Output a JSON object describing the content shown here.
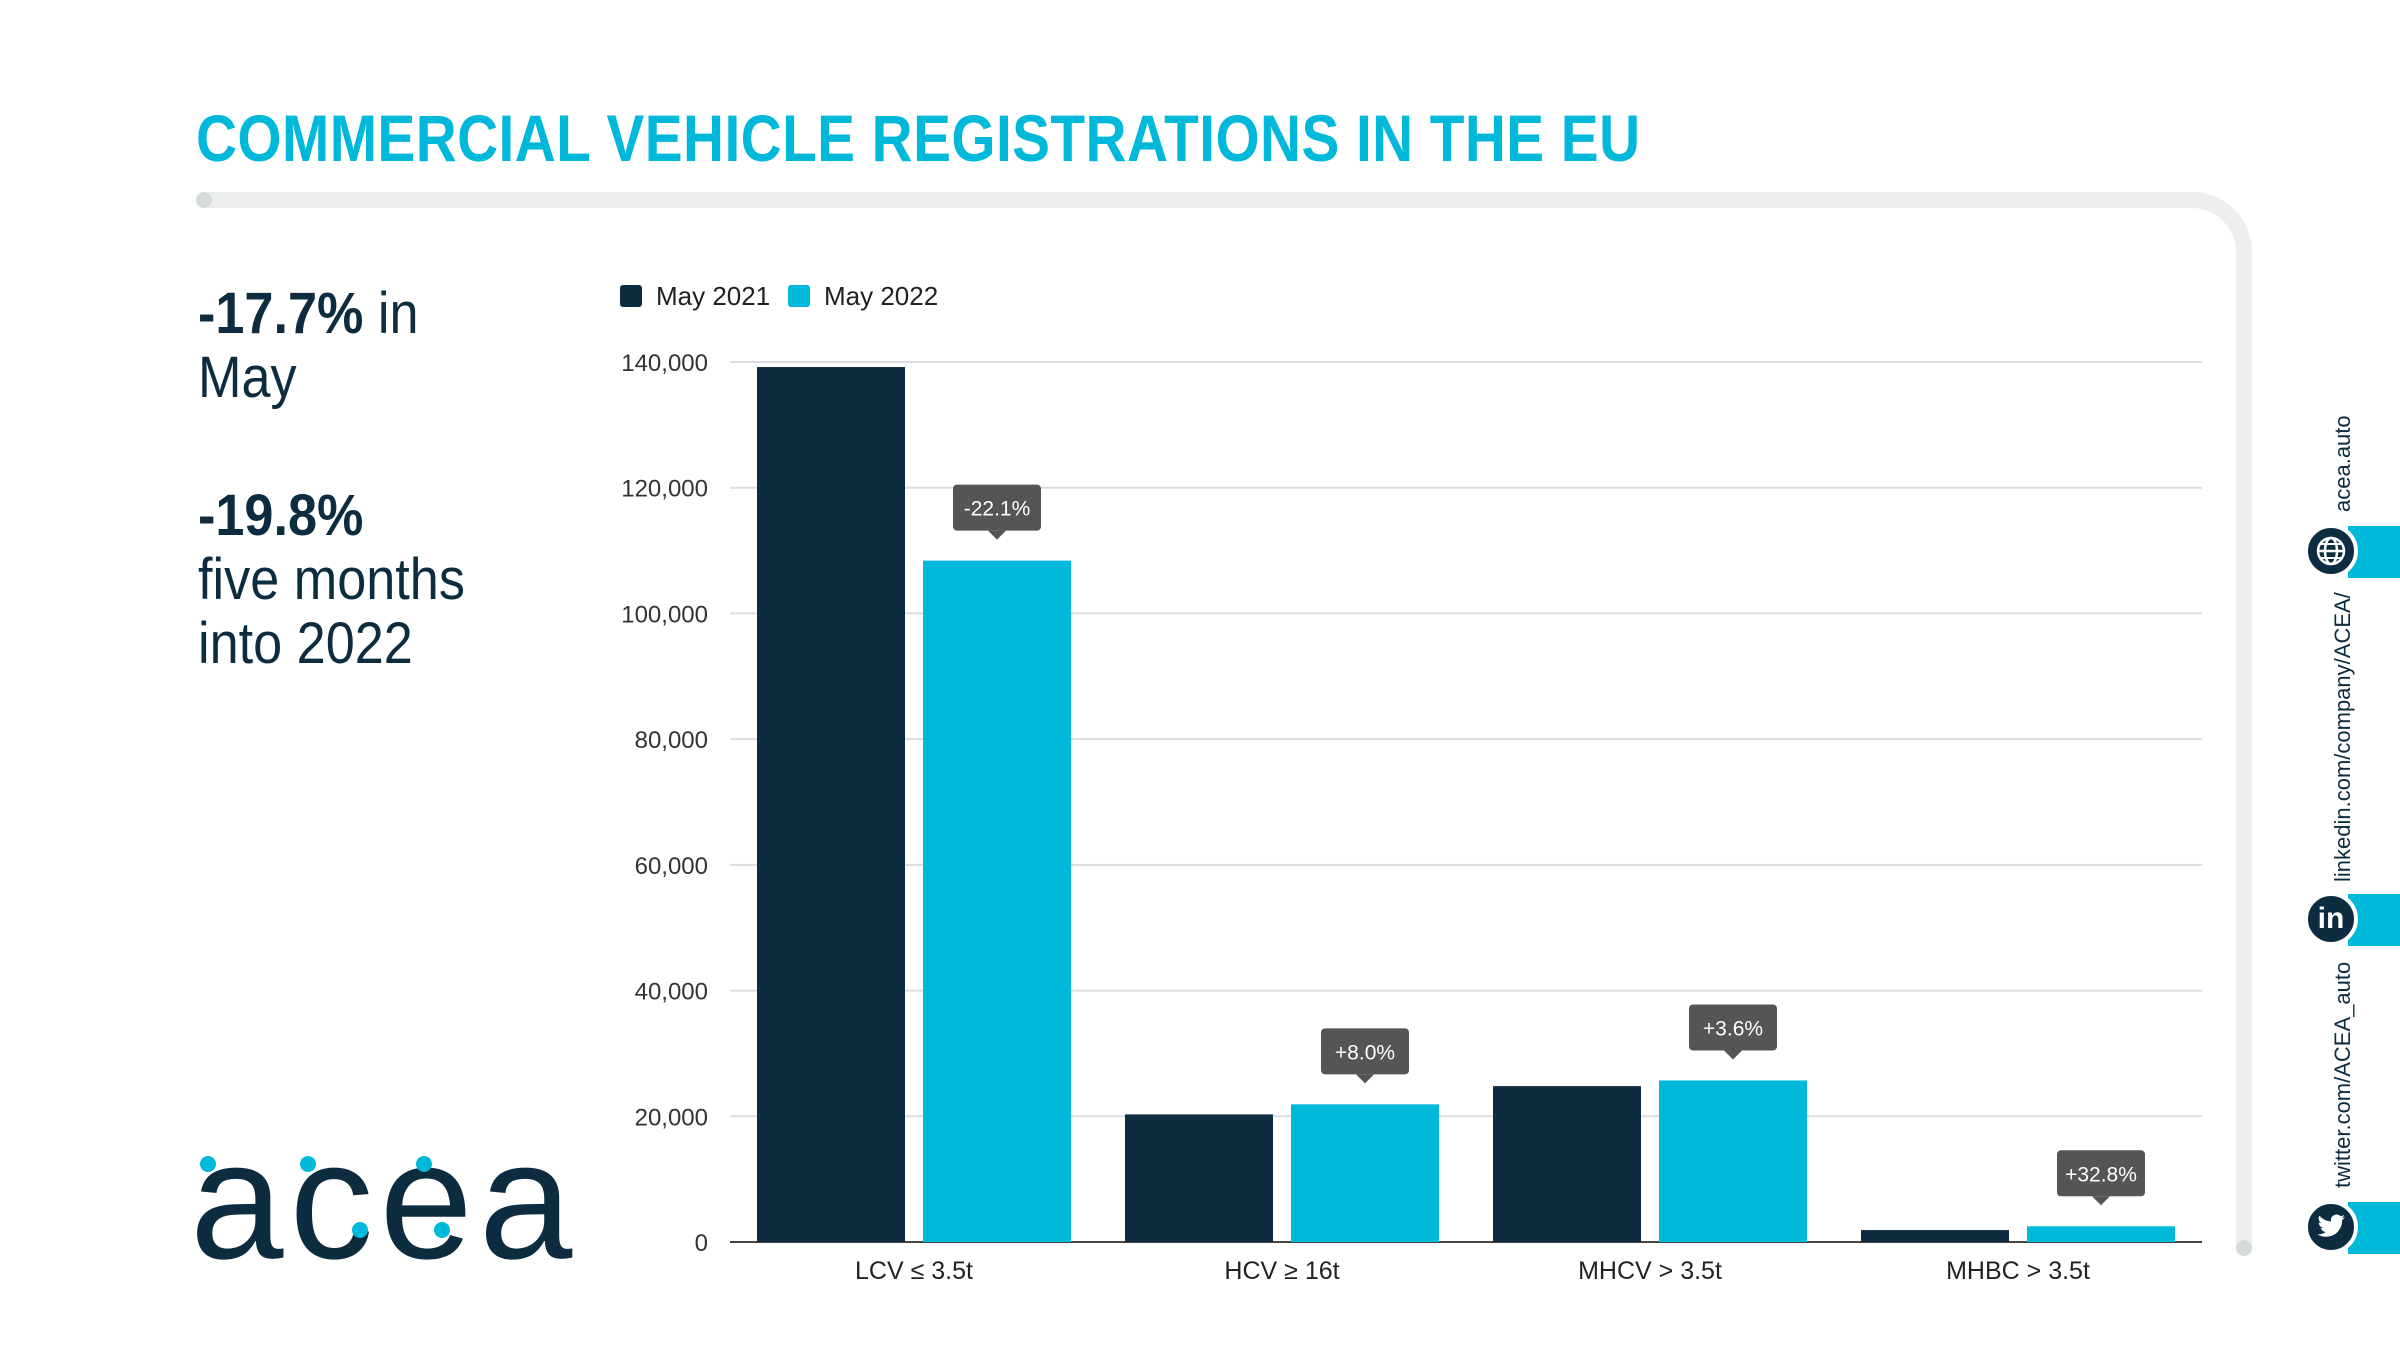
{
  "title": "COMMERCIAL VEHICLE REGISTRATIONS IN THE EU",
  "kpis": {
    "may_value": "-17.7%",
    "may_text_1": " in",
    "may_text_2": "May",
    "ytd_value": "-19.8%",
    "ytd_text_1": "five months",
    "ytd_text_2": "into 2022"
  },
  "logo": "acea",
  "social": {
    "web": "acea.auto",
    "linkedin": "linkedin.com/company/ACEA/",
    "twitter": "twitter.com/ACEA_auto",
    "web_icon": "globe-icon",
    "linkedin_icon": "linkedin-icon",
    "twitter_icon": "twitter-icon"
  },
  "colors": {
    "navy": "#0d2c3f",
    "cyan": "#00b8d9",
    "grid": "#dadddf",
    "label_bg": "#555555"
  },
  "chart_data": {
    "type": "bar",
    "categories": [
      "LCV ≤ 3.5t",
      "HCV ≥ 16t",
      "MHCV > 3.5t",
      "MHBC > 3.5t"
    ],
    "series": [
      {
        "name": "May 2021",
        "values": [
          139200,
          20300,
          24800,
          1900
        ]
      },
      {
        "name": "May 2022",
        "values": [
          108400,
          21900,
          25700,
          2500
        ]
      }
    ],
    "change_labels": [
      "-22.1%",
      "+8.0%",
      "+3.6%",
      "+32.8%"
    ],
    "ylim": [
      0,
      140000
    ],
    "yticks": [
      0,
      20000,
      40000,
      60000,
      80000,
      100000,
      120000,
      140000
    ],
    "ytick_labels": [
      "0",
      "20,000",
      "40,000",
      "60,000",
      "80,000",
      "100,000",
      "120,000",
      "140,000"
    ],
    "grid": true,
    "legend": "top-left"
  }
}
